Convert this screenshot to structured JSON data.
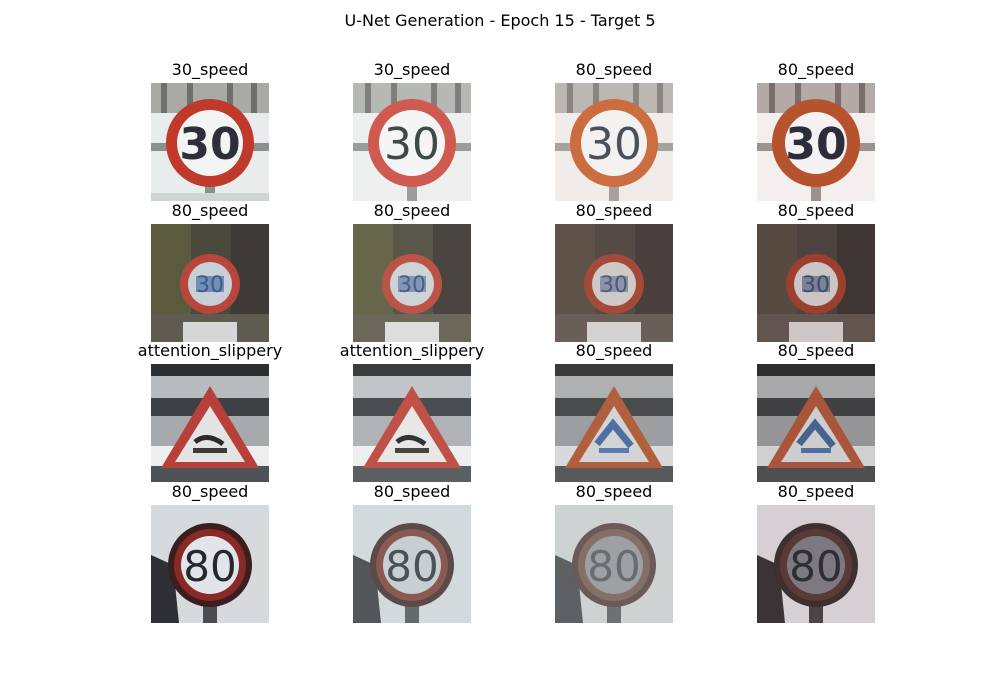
{
  "figure": {
    "title": "U-Net Generation - Epoch 15 - Target 5"
  },
  "rows": [
    {
      "labels": [
        "30_speed",
        "30_speed",
        "80_speed",
        "80_speed"
      ],
      "sign_text": [
        "30",
        "30",
        "30",
        "30"
      ]
    },
    {
      "labels": [
        "80_speed",
        "80_speed",
        "80_speed",
        "80_speed"
      ],
      "sign_text": [
        "30",
        "30",
        "30",
        "30"
      ]
    },
    {
      "labels": [
        "attention_slippery",
        "attention_slippery",
        "80_speed",
        "80_speed"
      ],
      "sign_text": [
        "",
        "",
        "",
        ""
      ]
    },
    {
      "labels": [
        "80_speed",
        "80_speed",
        "80_speed",
        "80_speed"
      ],
      "sign_text": [
        "80",
        "80",
        "80",
        "80"
      ]
    }
  ],
  "colors": {
    "sign_red": "#c0392b",
    "sign_orange_red": "#b5532c"
  }
}
